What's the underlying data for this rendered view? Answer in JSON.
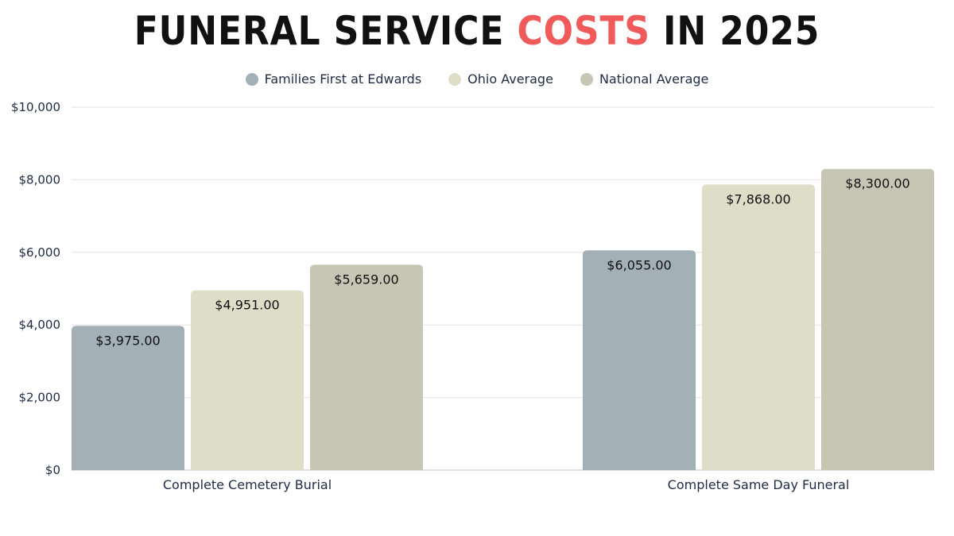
{
  "title": {
    "part1": "FUNERAL SERVICE ",
    "highlight": "COSTS",
    "part2": " IN 2025",
    "highlight_color": "#f05a5b"
  },
  "chart_data": {
    "type": "bar",
    "categories": [
      "Complete Cemetery Burial",
      "Complete Same Day Funeral"
    ],
    "series": [
      {
        "name": "Families First at Edwards",
        "color": "#a3b0b8",
        "values": [
          3975,
          6055
        ],
        "labels": [
          "$3,975.00",
          "$6,055.00"
        ]
      },
      {
        "name": "Ohio Average",
        "color": "#deddc8",
        "values": [
          4951,
          7868
        ],
        "labels": [
          "$4,951.00",
          "$7,868.00"
        ]
      },
      {
        "name": "National Average",
        "color": "#c7c6b5",
        "values": [
          5659,
          8300
        ],
        "labels": [
          "$5,659.00",
          "$8,300.00"
        ]
      }
    ],
    "ylim": [
      0,
      10000
    ],
    "yticks": [
      0,
      2000,
      4000,
      6000,
      8000,
      10000
    ],
    "ytick_labels": [
      "$0",
      "$2,000",
      "$4,000",
      "$6,000",
      "$8,000",
      "$10,000"
    ],
    "grid": true,
    "legend_position": "top-center",
    "xlabel": "",
    "ylabel": ""
  }
}
